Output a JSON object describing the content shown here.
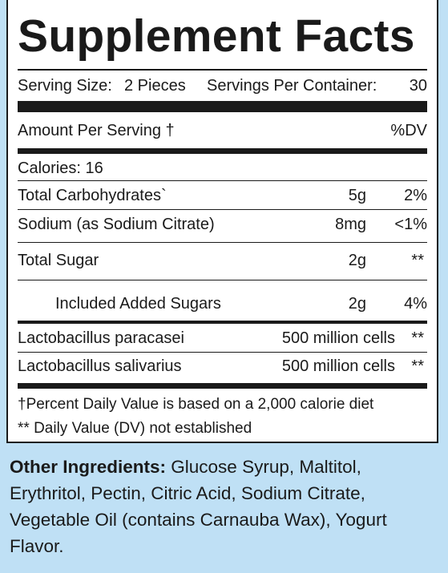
{
  "title": "Supplement Facts",
  "serving": {
    "size_label": "Serving Size:",
    "size_value": "2 Pieces",
    "per_container_label": "Servings Per Container:",
    "per_container_value": "30"
  },
  "header": {
    "amount_label": "Amount Per Serving †",
    "dv_label": "%DV"
  },
  "calories": "Calories: 16",
  "nutrients": [
    {
      "name": "Total Carbohydrates`",
      "amount": "5g",
      "dv": "2%"
    },
    {
      "name": "Sodium (as Sodium Citrate)",
      "amount": "8mg",
      "dv": "<1%"
    },
    {
      "name": "Total Sugar",
      "amount": "2g",
      "dv": "**"
    },
    {
      "name": "Included Added Sugars",
      "amount": "2g",
      "dv": "4%"
    },
    {
      "name": "Lactobacillus paracasei",
      "amount": "500 million cells",
      "dv": "**"
    },
    {
      "name": "Lactobacillus salivarius",
      "amount": "500 million cells",
      "dv": "**"
    }
  ],
  "footnotes": [
    "†Percent Daily Value is based on a 2,000 calorie diet",
    "** Daily Value (DV) not established"
  ],
  "other_ingredients": {
    "label": "Other Ingredients:",
    "text": " Glucose Syrup, Maltitol, Erythritol, Pectin, Citric Acid, Sodium Citrate, Vegetable Oil (contains Carnauba Wax), Yogurt Flavor."
  }
}
